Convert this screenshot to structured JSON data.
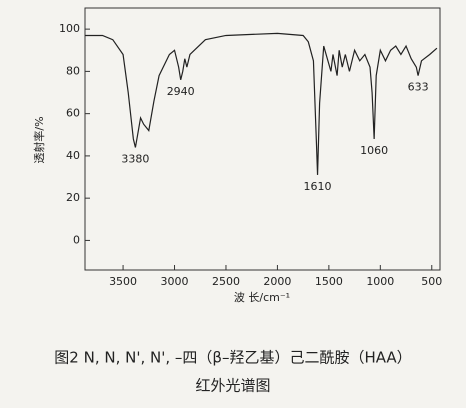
{
  "chart_data": {
    "type": "line",
    "y_label": "透射率/%",
    "x_label": "波 长/cm⁻¹",
    "caption": [
      "图2 N, N, N', N', –四（β–羟乙基）己二酰胺（HAA）",
      "红外光谱图"
    ],
    "x": [
      3870,
      3700,
      3600,
      3500,
      3450,
      3400,
      3380,
      3330,
      3300,
      3250,
      3200,
      3150,
      3050,
      3000,
      2960,
      2940,
      2920,
      2900,
      2880,
      2850,
      2700,
      2500,
      2000,
      1750,
      1700,
      1650,
      1620,
      1610,
      1590,
      1550,
      1480,
      1460,
      1420,
      1400,
      1370,
      1340,
      1300,
      1250,
      1200,
      1150,
      1100,
      1080,
      1060,
      1040,
      1000,
      950,
      900,
      850,
      800,
      750,
      700,
      650,
      633,
      600,
      520,
      450
    ],
    "series": [
      {
        "color": "#222222",
        "values": [
          97,
          97,
          95,
          88,
          70,
          48,
          44,
          58,
          55,
          52,
          66,
          78,
          88,
          90,
          82,
          76,
          80,
          86,
          82,
          88,
          95,
          97,
          98,
          97,
          94,
          85,
          45,
          31,
          65,
          92,
          80,
          88,
          78,
          90,
          82,
          88,
          80,
          90,
          85,
          88,
          82,
          70,
          48,
          78,
          90,
          85,
          90,
          92,
          88,
          92,
          86,
          82,
          78,
          85,
          88,
          91
        ]
      }
    ],
    "xlim": [
      3870,
      420
    ],
    "ylim": [
      -14,
      110
    ],
    "xticks": [
      3500,
      3000,
      2500,
      2000,
      1500,
      1000,
      500
    ],
    "yticks": [
      0,
      20,
      40,
      60,
      80,
      100
    ],
    "annotations": [
      {
        "label": "3380",
        "x": 3380,
        "y": 44
      },
      {
        "label": "2940",
        "x": 2940,
        "y": 76
      },
      {
        "label": "1610",
        "x": 1610,
        "y": 31
      },
      {
        "label": "1060",
        "x": 1060,
        "y": 48
      },
      {
        "label": "633",
        "x": 633,
        "y": 78
      }
    ]
  }
}
